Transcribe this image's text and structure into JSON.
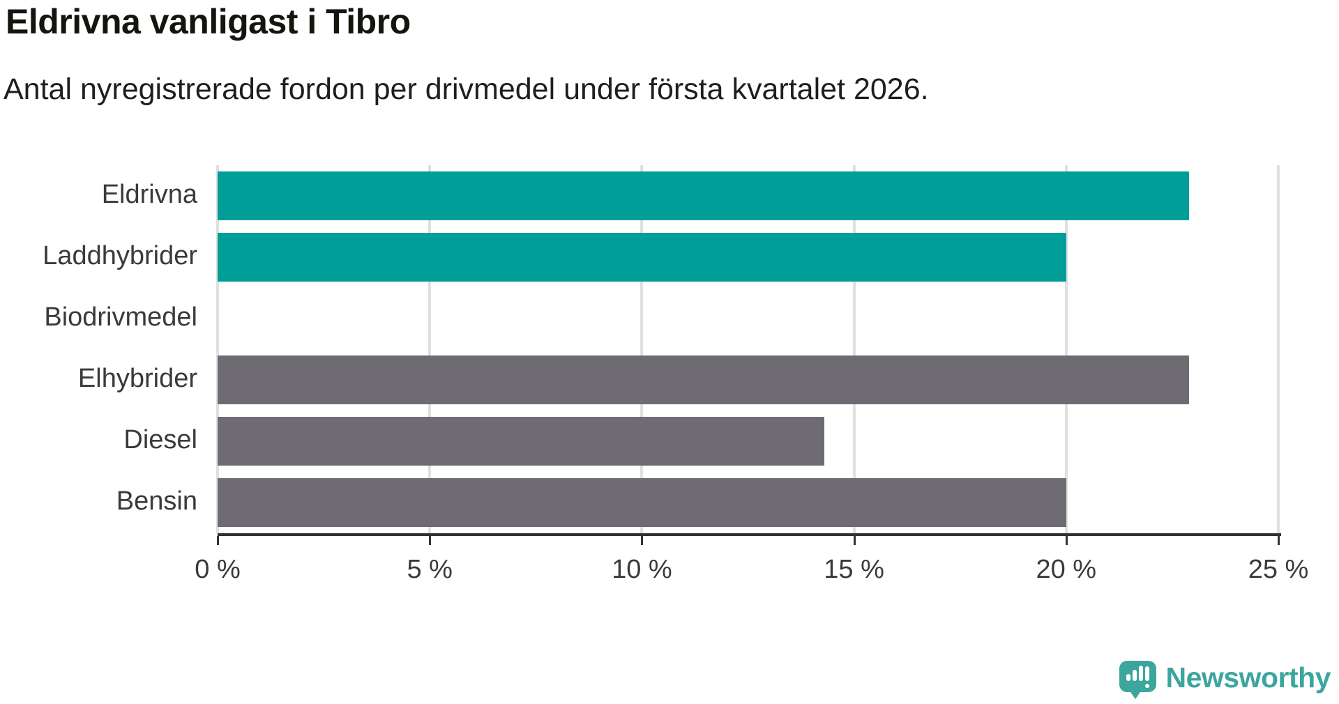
{
  "title": "Eldrivna vanligast i Tibro",
  "subtitle": "Antal nyregistrerade fordon per drivmedel under första kvartalet 2026.",
  "chart_data": {
    "type": "bar",
    "orientation": "horizontal",
    "title": "Eldrivna vanligast i Tibro",
    "subtitle": "Antal nyregistrerade fordon per drivmedel under första kvartalet 2026.",
    "categories": [
      "Eldrivna",
      "Laddhybrider",
      "Biodrivmedel",
      "Elhybrider",
      "Diesel",
      "Bensin"
    ],
    "values": [
      22.9,
      20.0,
      0.0,
      22.9,
      14.3,
      20.0
    ],
    "unit": "%",
    "bar_colors": [
      "#009e98",
      "#009e98",
      "#6e6c72",
      "#6e6c72",
      "#6e6c72",
      "#6e6c72"
    ],
    "highlight_color": "#009e98",
    "default_color": "#6e6c72",
    "xlim": [
      0,
      25
    ],
    "x_ticks": [
      0,
      5,
      10,
      15,
      20,
      25
    ],
    "x_tick_labels": [
      "0 %",
      "5 %",
      "10 %",
      "15 %",
      "20 %",
      "25 %"
    ],
    "grid": "vertical-light",
    "legend": "none"
  },
  "colors": {
    "teal": "#009e98",
    "gray": "#6e6c72",
    "gridline": "#e0e0e0",
    "axis": "#333236",
    "text": "#3a3a3a"
  },
  "logo": {
    "text": "Newsworthy",
    "color": "#3ca69e",
    "icon": "newsworthy-speech-bubble-chart-icon"
  }
}
